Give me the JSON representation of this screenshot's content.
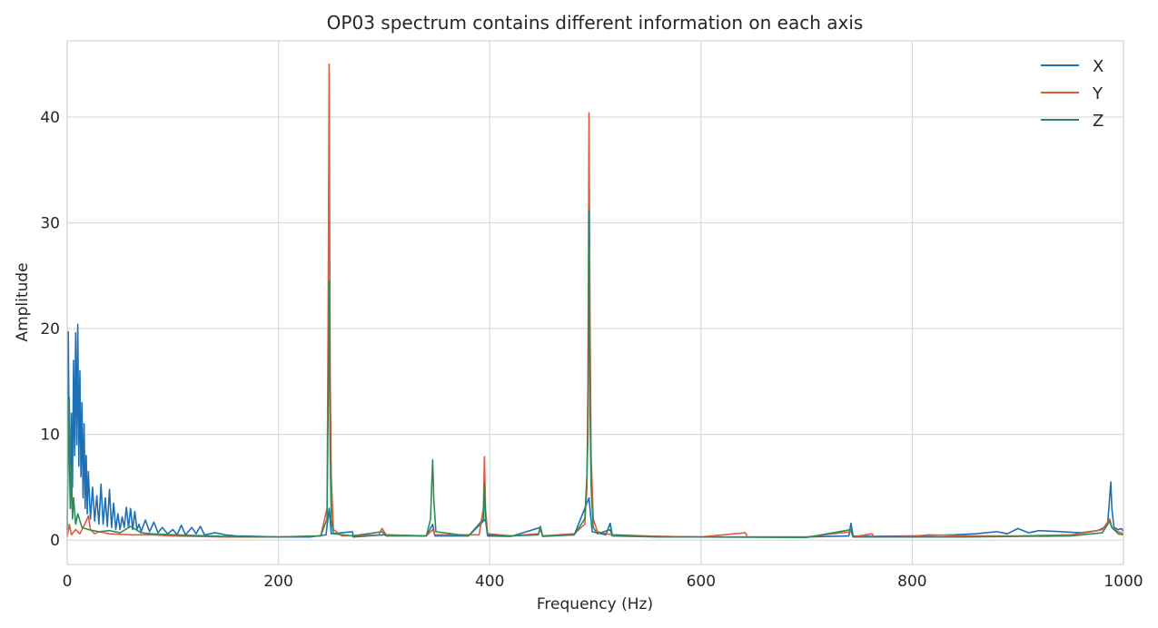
{
  "chart_data": {
    "type": "line",
    "title": "OP03 spectrum contains different information on each axis",
    "xlabel": "Frequency (Hz)",
    "ylabel": "Amplitude",
    "xlim": [
      0,
      1000
    ],
    "ylim": [
      -2.3,
      47.2
    ],
    "xticks": [
      0,
      200,
      400,
      600,
      800,
      1000
    ],
    "yticks": [
      0,
      10,
      20,
      30,
      40
    ],
    "grid": true,
    "legend_position": "top-right",
    "series": [
      {
        "name": "X",
        "color": "#1f6fb4",
        "points": [
          [
            0,
            0.5
          ],
          [
            1,
            19.7
          ],
          [
            2,
            8
          ],
          [
            3,
            3
          ],
          [
            4,
            12
          ],
          [
            5,
            5
          ],
          [
            6,
            17
          ],
          [
            7,
            8
          ],
          [
            8,
            19.6
          ],
          [
            9,
            9
          ],
          [
            10,
            20.4
          ],
          [
            11,
            7
          ],
          [
            12,
            16
          ],
          [
            13,
            6
          ],
          [
            14,
            13
          ],
          [
            15,
            4
          ],
          [
            16,
            11
          ],
          [
            17,
            3
          ],
          [
            18,
            8
          ],
          [
            19,
            2.5
          ],
          [
            20,
            6.5
          ],
          [
            22,
            2
          ],
          [
            24,
            5
          ],
          [
            26,
            1.8
          ],
          [
            28,
            4.2
          ],
          [
            30,
            1.5
          ],
          [
            32,
            5.3
          ],
          [
            34,
            1.5
          ],
          [
            36,
            4
          ],
          [
            38,
            1.3
          ],
          [
            40,
            4.8
          ],
          [
            42,
            1.2
          ],
          [
            44,
            3.5
          ],
          [
            46,
            1
          ],
          [
            48,
            2.5
          ],
          [
            50,
            1
          ],
          [
            52,
            2.2
          ],
          [
            54,
            1.2
          ],
          [
            56,
            3.1
          ],
          [
            58,
            1.2
          ],
          [
            60,
            3
          ],
          [
            62,
            1
          ],
          [
            64,
            2.7
          ],
          [
            66,
            1
          ],
          [
            68,
            1.5
          ],
          [
            70,
            0.8
          ],
          [
            74,
            1.9
          ],
          [
            78,
            0.8
          ],
          [
            82,
            1.7
          ],
          [
            86,
            0.7
          ],
          [
            90,
            1.2
          ],
          [
            95,
            0.6
          ],
          [
            100,
            1
          ],
          [
            104,
            0.5
          ],
          [
            108,
            1.4
          ],
          [
            112,
            0.5
          ],
          [
            118,
            1.2
          ],
          [
            122,
            0.6
          ],
          [
            126,
            1.3
          ],
          [
            130,
            0.5
          ],
          [
            140,
            0.7
          ],
          [
            150,
            0.5
          ],
          [
            160,
            0.4
          ],
          [
            180,
            0.35
          ],
          [
            200,
            0.3
          ],
          [
            230,
            0.3
          ],
          [
            245,
            0.5
          ],
          [
            248,
            3
          ],
          [
            250,
            0.6
          ],
          [
            270,
            0.8
          ],
          [
            271,
            0.3
          ],
          [
            300,
            0.5
          ],
          [
            340,
            0.4
          ],
          [
            346,
            1.5
          ],
          [
            348,
            0.4
          ],
          [
            380,
            0.4
          ],
          [
            396,
            2
          ],
          [
            398,
            0.4
          ],
          [
            420,
            0.35
          ],
          [
            448,
            1.2
          ],
          [
            450,
            0.35
          ],
          [
            480,
            0.5
          ],
          [
            494,
            4
          ],
          [
            497,
            0.8
          ],
          [
            510,
            0.5
          ],
          [
            514,
            1.6
          ],
          [
            516,
            0.5
          ],
          [
            560,
            0.35
          ],
          [
            600,
            0.3
          ],
          [
            640,
            0.3
          ],
          [
            700,
            0.3
          ],
          [
            740,
            0.4
          ],
          [
            742,
            1.6
          ],
          [
            744,
            0.4
          ],
          [
            760,
            0.35
          ],
          [
            800,
            0.4
          ],
          [
            840,
            0.5
          ],
          [
            860,
            0.6
          ],
          [
            880,
            0.8
          ],
          [
            890,
            0.6
          ],
          [
            900,
            1.1
          ],
          [
            910,
            0.7
          ],
          [
            920,
            0.9
          ],
          [
            940,
            0.8
          ],
          [
            960,
            0.7
          ],
          [
            975,
            0.9
          ],
          [
            980,
            1.1
          ],
          [
            985,
            1.5
          ],
          [
            988,
            5.5
          ],
          [
            989,
            3
          ],
          [
            991,
            1.2
          ],
          [
            995,
            1
          ],
          [
            998,
            1.1
          ],
          [
            1000,
            0.8
          ]
        ]
      },
      {
        "name": "Y",
        "color": "#e05b3c",
        "points": [
          [
            0,
            0.3
          ],
          [
            2,
            1.5
          ],
          [
            4,
            0.5
          ],
          [
            8,
            1
          ],
          [
            12,
            0.6
          ],
          [
            18,
            1.8
          ],
          [
            20,
            2.3
          ],
          [
            22,
            1
          ],
          [
            26,
            0.6
          ],
          [
            30,
            0.8
          ],
          [
            40,
            0.6
          ],
          [
            60,
            0.5
          ],
          [
            80,
            0.5
          ],
          [
            100,
            0.4
          ],
          [
            150,
            0.3
          ],
          [
            200,
            0.3
          ],
          [
            240,
            0.4
          ],
          [
            246,
            3
          ],
          [
            247,
            20
          ],
          [
            248,
            45
          ],
          [
            249,
            15
          ],
          [
            250,
            6
          ],
          [
            252,
            1
          ],
          [
            260,
            0.4
          ],
          [
            295,
            0.5
          ],
          [
            298,
            1.1
          ],
          [
            302,
            0.5
          ],
          [
            340,
            0.4
          ],
          [
            346,
            1
          ],
          [
            348,
            0.5
          ],
          [
            390,
            0.5
          ],
          [
            394,
            3
          ],
          [
            395,
            7.9
          ],
          [
            396,
            3
          ],
          [
            398,
            0.6
          ],
          [
            420,
            0.4
          ],
          [
            446,
            0.6
          ],
          [
            448,
            1
          ],
          [
            450,
            0.4
          ],
          [
            480,
            0.6
          ],
          [
            490,
            1.5
          ],
          [
            492,
            5
          ],
          [
            493,
            15
          ],
          [
            494,
            40.4
          ],
          [
            495,
            20
          ],
          [
            496,
            8
          ],
          [
            498,
            2
          ],
          [
            502,
            0.8
          ],
          [
            520,
            0.4
          ],
          [
            560,
            0.35
          ],
          [
            600,
            0.3
          ],
          [
            642,
            0.7
          ],
          [
            644,
            0.3
          ],
          [
            700,
            0.3
          ],
          [
            742,
            0.8
          ],
          [
            744,
            0.3
          ],
          [
            762,
            0.6
          ],
          [
            764,
            0.3
          ],
          [
            800,
            0.35
          ],
          [
            815,
            0.5
          ],
          [
            850,
            0.4
          ],
          [
            900,
            0.4
          ],
          [
            950,
            0.5
          ],
          [
            970,
            0.8
          ],
          [
            980,
            1
          ],
          [
            987,
            2
          ],
          [
            989,
            1.2
          ],
          [
            995,
            0.8
          ],
          [
            1000,
            0.6
          ]
        ]
      },
      {
        "name": "Z",
        "color": "#2e8b57",
        "points": [
          [
            0,
            1
          ],
          [
            1,
            9
          ],
          [
            2,
            13.5
          ],
          [
            3,
            3
          ],
          [
            4,
            7
          ],
          [
            5,
            2
          ],
          [
            6,
            4
          ],
          [
            8,
            1.5
          ],
          [
            10,
            2.5
          ],
          [
            14,
            1.2
          ],
          [
            20,
            1
          ],
          [
            30,
            0.8
          ],
          [
            40,
            0.9
          ],
          [
            50,
            0.7
          ],
          [
            60,
            1.3
          ],
          [
            70,
            0.7
          ],
          [
            80,
            0.6
          ],
          [
            100,
            0.5
          ],
          [
            150,
            0.35
          ],
          [
            200,
            0.3
          ],
          [
            240,
            0.4
          ],
          [
            246,
            2
          ],
          [
            247,
            12
          ],
          [
            248,
            24.5
          ],
          [
            249,
            8
          ],
          [
            250,
            2
          ],
          [
            252,
            0.6
          ],
          [
            270,
            0.4
          ],
          [
            298,
            0.8
          ],
          [
            302,
            0.4
          ],
          [
            340,
            0.4
          ],
          [
            344,
            2
          ],
          [
            345,
            5
          ],
          [
            346,
            7.6
          ],
          [
            347,
            4
          ],
          [
            349,
            0.8
          ],
          [
            380,
            0.4
          ],
          [
            394,
            2
          ],
          [
            395,
            5.5
          ],
          [
            396,
            2
          ],
          [
            398,
            0.5
          ],
          [
            420,
            0.4
          ],
          [
            446,
            0.5
          ],
          [
            448,
            1.3
          ],
          [
            450,
            0.4
          ],
          [
            480,
            0.5
          ],
          [
            490,
            2
          ],
          [
            492,
            6
          ],
          [
            493,
            10
          ],
          [
            494,
            31.2
          ],
          [
            495,
            12
          ],
          [
            496,
            5
          ],
          [
            498,
            1.2
          ],
          [
            502,
            0.6
          ],
          [
            514,
            1
          ],
          [
            516,
            0.4
          ],
          [
            560,
            0.3
          ],
          [
            600,
            0.3
          ],
          [
            700,
            0.25
          ],
          [
            742,
            1
          ],
          [
            744,
            0.3
          ],
          [
            800,
            0.3
          ],
          [
            850,
            0.3
          ],
          [
            900,
            0.35
          ],
          [
            950,
            0.4
          ],
          [
            980,
            0.7
          ],
          [
            987,
            1.8
          ],
          [
            989,
            1.2
          ],
          [
            995,
            0.6
          ],
          [
            1000,
            0.5
          ]
        ]
      }
    ]
  }
}
